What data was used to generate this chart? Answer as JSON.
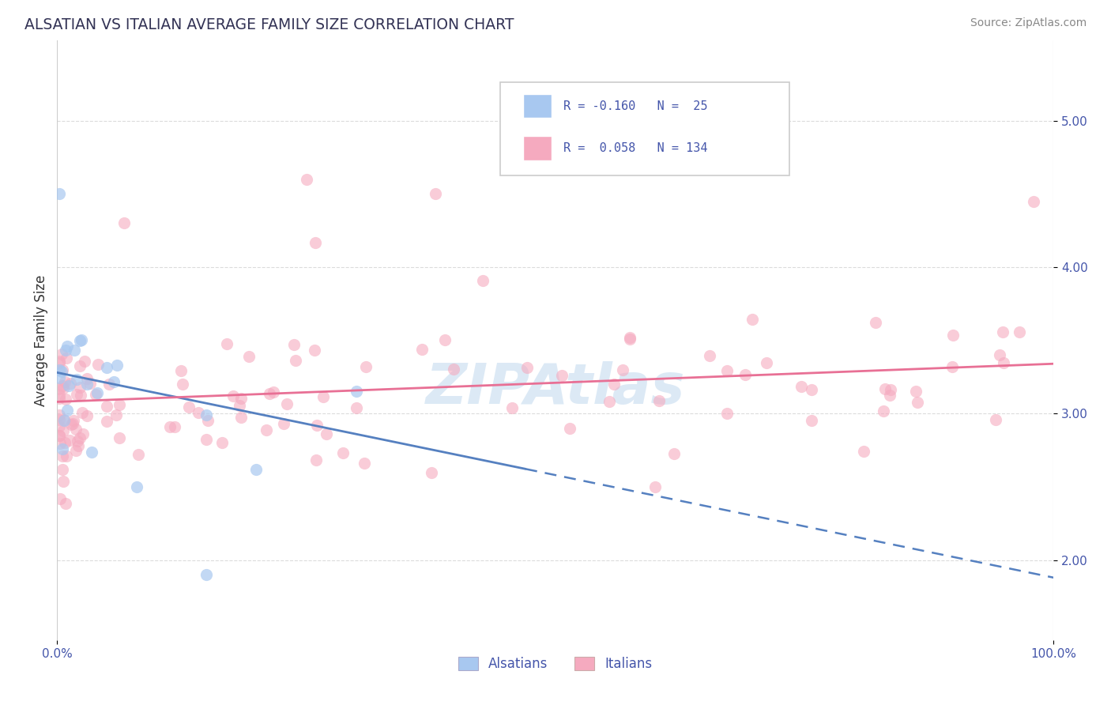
{
  "title": "ALSATIAN VS ITALIAN AVERAGE FAMILY SIZE CORRELATION CHART",
  "source_text": "Source: ZipAtlas.com",
  "ylabel": "Average Family Size",
  "xlim": [
    0,
    100
  ],
  "ylim": [
    1.45,
    5.55
  ],
  "yticks": [
    2.0,
    3.0,
    4.0,
    5.0
  ],
  "legend_label1": "Alsatians",
  "legend_label2": "Italians",
  "alsatian_color": "#A8C8F0",
  "italian_color": "#F5AABF",
  "alsatian_line_color": "#5580C0",
  "italian_line_color": "#E87095",
  "title_color": "#333355",
  "label_color": "#4455AA",
  "tick_color": "#4455AA",
  "background_color": "#FFFFFF",
  "grid_color": "#CCCCCC",
  "alsatian_trend_x0": 0,
  "alsatian_trend_x_solid_end": 47,
  "alsatian_trend_x_dashed_end": 100,
  "alsatian_trend_y0": 3.28,
  "alsatian_trend_slope": -0.014,
  "italian_trend_y0": 3.08,
  "italian_trend_slope": 0.0026,
  "watermark_text": "ZIPAtlas",
  "watermark_color": "#C0D8EE",
  "watermark_alpha": 0.55
}
